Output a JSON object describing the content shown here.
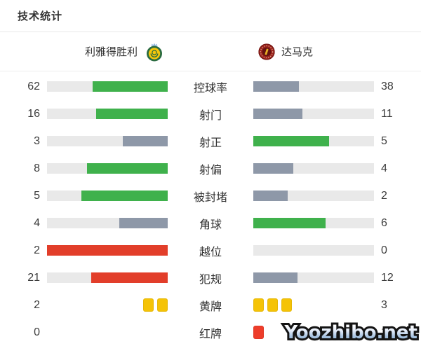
{
  "title": "技术统计",
  "teams": {
    "home": {
      "name": "利雅得胜利",
      "logo": "al-nassr-badge"
    },
    "away": {
      "name": "达马克",
      "logo": "damac-badge"
    }
  },
  "stats": [
    {
      "label": "控球率",
      "home": "62",
      "away": "38",
      "type": "bar",
      "home_pct": 62,
      "away_pct": 38,
      "home_color": "green",
      "away_color": "gray"
    },
    {
      "label": "射门",
      "home": "16",
      "away": "11",
      "type": "bar",
      "home_pct": 59.3,
      "away_pct": 40.7,
      "home_color": "green",
      "away_color": "gray"
    },
    {
      "label": "射正",
      "home": "3",
      "away": "5",
      "type": "bar",
      "home_pct": 37.5,
      "away_pct": 62.5,
      "home_color": "gray",
      "away_color": "green"
    },
    {
      "label": "射偏",
      "home": "8",
      "away": "4",
      "type": "bar",
      "home_pct": 66.7,
      "away_pct": 33.3,
      "home_color": "green",
      "away_color": "gray"
    },
    {
      "label": "被封堵",
      "home": "5",
      "away": "2",
      "type": "bar",
      "home_pct": 71.4,
      "away_pct": 28.6,
      "home_color": "green",
      "away_color": "gray"
    },
    {
      "label": "角球",
      "home": "4",
      "away": "6",
      "type": "bar",
      "home_pct": 40,
      "away_pct": 60,
      "home_color": "gray",
      "away_color": "green"
    },
    {
      "label": "越位",
      "home": "2",
      "away": "0",
      "type": "bar",
      "home_pct": 100,
      "away_pct": 0,
      "home_color": "red",
      "away_color": "gray"
    },
    {
      "label": "犯规",
      "home": "21",
      "away": "12",
      "type": "bar",
      "home_pct": 63.6,
      "away_pct": 36.4,
      "home_color": "red",
      "away_color": "gray"
    },
    {
      "label": "黄牌",
      "home": "2",
      "away": "3",
      "type": "cards",
      "card": "yellow",
      "home_cards": 2,
      "away_cards": 3
    },
    {
      "label": "红牌",
      "home": "0",
      "away": "1",
      "type": "cards",
      "card": "red",
      "home_cards": 0,
      "away_cards": 1
    }
  ],
  "colors": {
    "win_green": "#3fb14c",
    "lose_gray": "#8e98a8",
    "negative_red": "#e23e2a",
    "yellow_card": "#f5c306",
    "red_card": "#ee3d2a",
    "bar_track": "#e9e9e9"
  },
  "watermark": "Yoozhibo.net"
}
